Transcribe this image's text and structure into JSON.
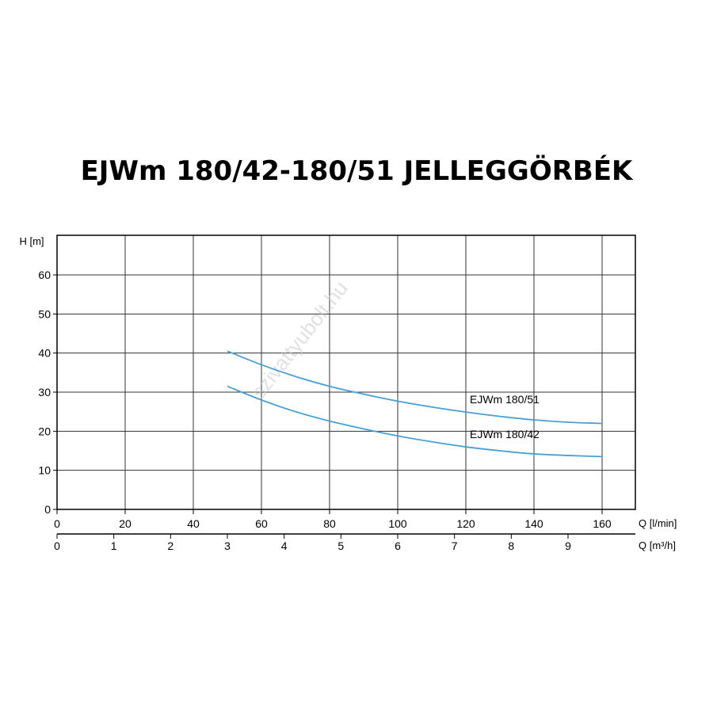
{
  "title": "EJWm 180/42-180/51 JELLEGGÖRBÉK",
  "watermark": "szivattyubolt.hu",
  "colors": {
    "curve": "#4a9fd4",
    "grid": "#333333",
    "axis": "#000000",
    "watermark": "#c8c8c8"
  },
  "chart_data": {
    "type": "line",
    "title": "EJWm 180/42-180/51 JELLEGGÖRBÉK",
    "ylabel": "H [m]",
    "xlabel": "Q [l/min]",
    "xlabel_secondary": "Q [m³/h]",
    "ylim": [
      0,
      70
    ],
    "xlim": [
      0,
      168
    ],
    "yticks": [
      0,
      10,
      20,
      30,
      40,
      50,
      60
    ],
    "xticks": [
      0,
      20,
      40,
      60,
      80,
      100,
      120,
      140,
      160
    ],
    "xticks_secondary": [
      0,
      1,
      2,
      3,
      4,
      5,
      6,
      7,
      8,
      9
    ],
    "grid": true,
    "series": [
      {
        "name": "EJWm 180/51",
        "x": [
          50,
          60,
          70,
          80,
          90,
          100,
          110,
          120,
          130,
          140,
          150,
          160
        ],
        "y": [
          40.5,
          37.0,
          34.0,
          31.5,
          29.5,
          27.7,
          26.2,
          24.9,
          23.8,
          22.9,
          22.3,
          22.0
        ]
      },
      {
        "name": "EJWm 180/42",
        "x": [
          50,
          60,
          70,
          80,
          90,
          100,
          110,
          120,
          130,
          140,
          150,
          160
        ],
        "y": [
          31.5,
          28.0,
          25.0,
          22.6,
          20.6,
          18.8,
          17.3,
          16.0,
          15.0,
          14.2,
          13.8,
          13.5
        ]
      }
    ]
  }
}
